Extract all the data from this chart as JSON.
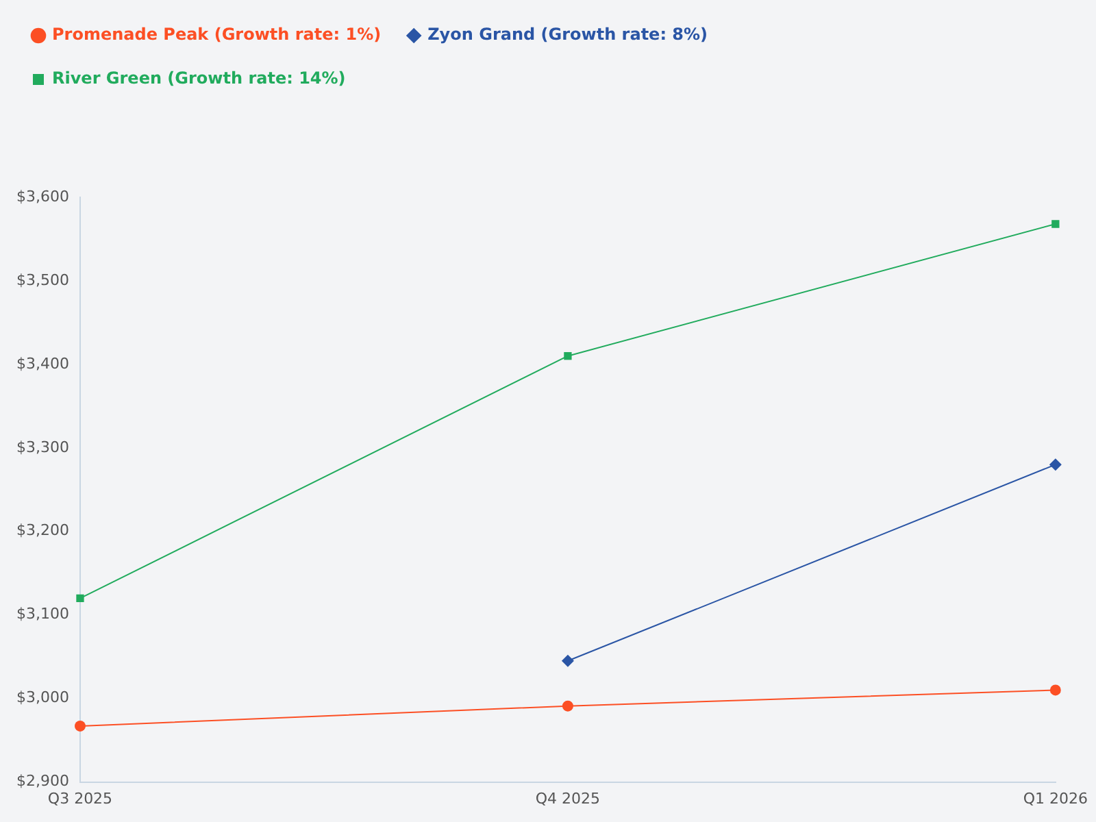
{
  "chart_data": {
    "type": "line",
    "categories": [
      "Q3 2025",
      "Q4 2025",
      "Q1 2026"
    ],
    "series": [
      {
        "name": "Promenade Peak (Growth rate: 1%)",
        "color": "#fc4f24",
        "marker": "circle",
        "values": [
          2967,
          2991,
          3010
        ]
      },
      {
        "name": "Zyon Grand (Growth rate: 8%)",
        "color": "#2a55a5",
        "marker": "diamond",
        "values": [
          null,
          3045,
          3280
        ]
      },
      {
        "name": "River Green (Growth rate: 14%)",
        "color": "#21ab5d",
        "marker": "square",
        "values": [
          3120,
          3410,
          3568
        ]
      }
    ],
    "ylim": [
      2900,
      3600
    ],
    "yticks": [
      {
        "value": 2900,
        "label": "$2,900"
      },
      {
        "value": 3000,
        "label": "$3,000"
      },
      {
        "value": 3100,
        "label": "$3,100"
      },
      {
        "value": 3200,
        "label": "$3,200"
      },
      {
        "value": 3300,
        "label": "$3,300"
      },
      {
        "value": 3400,
        "label": "$3,400"
      },
      {
        "value": 3500,
        "label": "$3,500"
      },
      {
        "value": 3600,
        "label": "$3,600"
      }
    ],
    "grid": false,
    "legend": "top left",
    "line_style": "solid"
  }
}
